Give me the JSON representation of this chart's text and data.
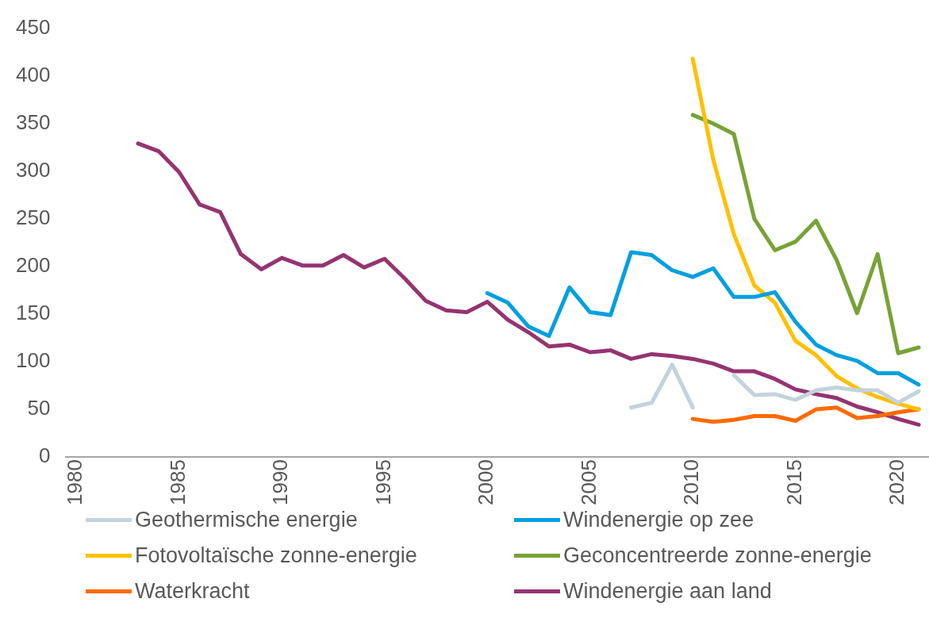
{
  "chart_data": {
    "type": "line",
    "xlim": [
      1979.5,
      2021.5
    ],
    "xticks": [
      1980,
      1985,
      1990,
      1995,
      2000,
      2005,
      2010,
      2015,
      2020
    ],
    "ylim": [
      0,
      450
    ],
    "yticks": [
      0,
      50,
      100,
      150,
      200,
      250,
      300,
      350,
      400,
      450
    ],
    "grid": false,
    "legend": "bottom",
    "marker": "none",
    "line_style": "solid",
    "series": [
      {
        "name": "Geothermische energie",
        "color": "#c3d3dd",
        "x": [
          2007,
          2008,
          2009,
          2010,
          2011,
          2012,
          2013,
          2014,
          2015,
          2016,
          2017,
          2018,
          2019,
          2020,
          2021
        ],
        "values": [
          52,
          57,
          97,
          52,
          null,
          86,
          65,
          66,
          60,
          70,
          73,
          70,
          70,
          57,
          69
        ]
      },
      {
        "name": "Windenergie op zee",
        "color": "#00a0df",
        "x": [
          2000,
          2001,
          2002,
          2003,
          2004,
          2005,
          2006,
          2007,
          2008,
          2009,
          2010,
          2011,
          2012,
          2013,
          2014,
          2015,
          2016,
          2017,
          2018,
          2019,
          2020,
          2021
        ],
        "values": [
          172,
          162,
          137,
          127,
          178,
          152,
          149,
          215,
          212,
          196,
          189,
          198,
          168,
          168,
          173,
          142,
          118,
          107,
          101,
          88,
          88,
          76
        ]
      },
      {
        "name": "Fotovoltaïsche zonne-energie",
        "color": "#ffc000",
        "x": [
          2010,
          2011,
          2012,
          2013,
          2014,
          2015,
          2016,
          2017,
          2018,
          2019,
          2020,
          2021
        ],
        "values": [
          418,
          312,
          234,
          180,
          162,
          122,
          107,
          85,
          72,
          63,
          56,
          50
        ]
      },
      {
        "name": "Geconcentreerde zonne-energie",
        "color": "#77a336",
        "x": [
          2010,
          2011,
          2012,
          2013,
          2014,
          2015,
          2016,
          2017,
          2018,
          2019,
          2020,
          2021
        ],
        "values": [
          359,
          350,
          339,
          250,
          217,
          226,
          248,
          207,
          151,
          213,
          109,
          115
        ]
      },
      {
        "name": "Waterkracht",
        "color": "#ff6a00",
        "x": [
          2010,
          2011,
          2012,
          2013,
          2014,
          2015,
          2016,
          2017,
          2018,
          2019,
          2020,
          2021
        ],
        "values": [
          40,
          37,
          39,
          43,
          43,
          38,
          50,
          52,
          41,
          43,
          47,
          50
        ]
      },
      {
        "name": "Windenergie aan land",
        "color": "#953470",
        "x": [
          1983,
          1984,
          1985,
          1986,
          1987,
          1988,
          1989,
          1990,
          1991,
          1992,
          1993,
          1994,
          1995,
          1996,
          1997,
          1998,
          1999,
          2000,
          2001,
          2002,
          2003,
          2004,
          2005,
          2006,
          2007,
          2008,
          2009,
          2010,
          2011,
          2012,
          2013,
          2014,
          2015,
          2016,
          2017,
          2018,
          2019,
          2020,
          2021
        ],
        "values": [
          329,
          321,
          299,
          265,
          257,
          213,
          197,
          209,
          201,
          201,
          212,
          199,
          208,
          187,
          164,
          154,
          152,
          163,
          144,
          131,
          116,
          118,
          110,
          112,
          103,
          108,
          106,
          103,
          98,
          90,
          90,
          82,
          71,
          66,
          62,
          53,
          47,
          40,
          34
        ]
      }
    ]
  }
}
